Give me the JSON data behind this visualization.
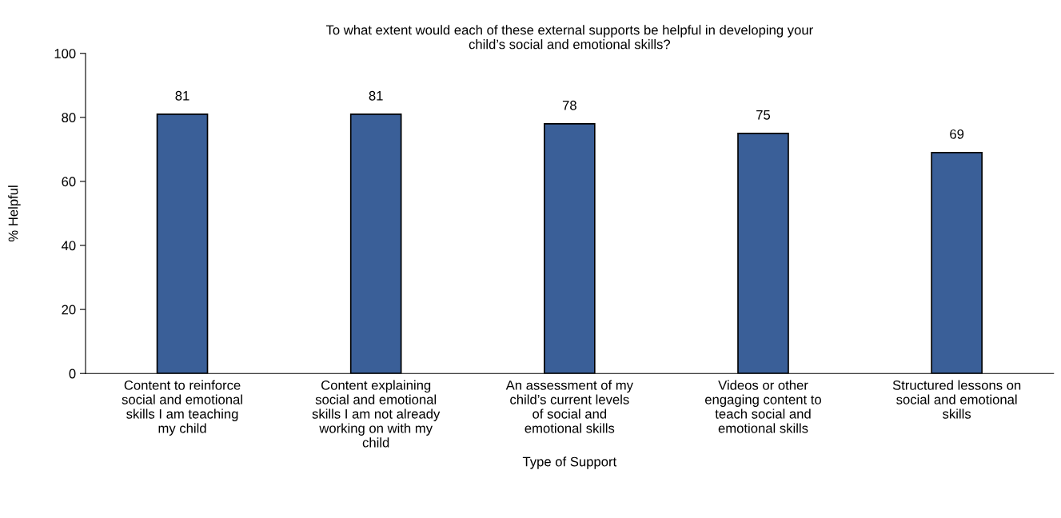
{
  "chart_data": {
    "type": "bar",
    "title": "To what extent would each of these external supports be helpful in developing your\nchild’s social and emotional skills?",
    "xlabel": "Type of Support",
    "ylabel": "% Helpful",
    "categories": [
      "Content to reinforce\nsocial and emotional\nskills I am teaching\nmy child",
      "Content explaining\nsocial and emotional\nskills I am not already\nworking on with my\nchild",
      "An assessment of my\nchild’s current levels\nof social and\nemotional skills",
      "Videos or other\nengaging content to\nteach social and\nemotional skills",
      "Structured lessons on\nsocial and emotional\nskills"
    ],
    "values": [
      81,
      81,
      78,
      75,
      69
    ],
    "color": "#3a5f98",
    "ylim": [
      0,
      100
    ],
    "yticks": [
      0,
      20,
      40,
      60,
      80,
      100
    ],
    "data_labels": true,
    "grid": false,
    "legend": false
  }
}
